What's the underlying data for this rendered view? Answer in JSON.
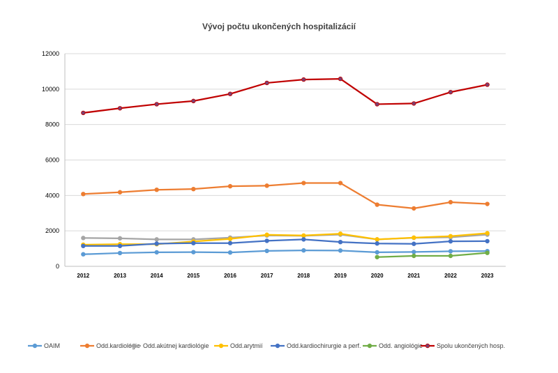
{
  "chart_data": {
    "type": "line",
    "title": "Vývoj počtu ukončených hospitalizácií",
    "xlabel": "",
    "ylabel": "",
    "ylim": [
      0,
      12000
    ],
    "yticks": [
      0,
      2000,
      4000,
      6000,
      8000,
      10000,
      12000
    ],
    "grid": true,
    "legend_position": "bottom",
    "categories": [
      "2012",
      "2013",
      "2014",
      "2015",
      "2016",
      "2017",
      "2018",
      "2019",
      "2020",
      "2021",
      "2022",
      "2023"
    ],
    "series": [
      {
        "name": "OAIM",
        "color": "#5b9bd5",
        "values": [
          680,
          750,
          790,
          800,
          780,
          870,
          900,
          890,
          790,
          810,
          850,
          860
        ]
      },
      {
        "name": "Odd.kardiológie",
        "color": "#ed7d31",
        "values": [
          4080,
          4180,
          4320,
          4360,
          4520,
          4550,
          4700,
          4700,
          3480,
          3270,
          3620,
          3520
        ]
      },
      {
        "name": "Odd.akútnej kardiológie",
        "color": "#a5a5a5",
        "values": [
          1600,
          1580,
          1520,
          1520,
          1620,
          1740,
          1720,
          1790,
          1520,
          1610,
          1640,
          1790
        ]
      },
      {
        "name": "Odd.arytmií",
        "color": "#ffc000",
        "values": [
          1220,
          1250,
          1250,
          1400,
          1550,
          1780,
          1740,
          1840,
          1520,
          1620,
          1700,
          1870
        ]
      },
      {
        "name": "Odd.kardiochirurgie a perf.",
        "color": "#4472c4",
        "values": [
          1150,
          1150,
          1280,
          1310,
          1310,
          1440,
          1520,
          1370,
          1290,
          1270,
          1410,
          1420
        ]
      },
      {
        "name": "Odd. angiológie",
        "color": "#70ad47",
        "values": [
          null,
          null,
          null,
          null,
          null,
          null,
          null,
          null,
          520,
          590,
          590,
          760
        ]
      },
      {
        "name": "Spolu ukončených hosp.",
        "color": "#c00000",
        "marker": "#7f3f6f",
        "values": [
          8660,
          8920,
          9150,
          9330,
          9730,
          10350,
          10540,
          10580,
          9150,
          9190,
          9830,
          10250
        ]
      }
    ]
  }
}
